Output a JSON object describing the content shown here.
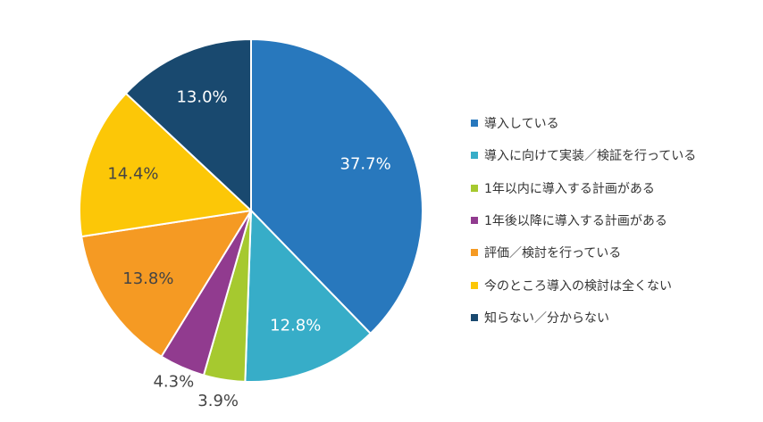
{
  "chart_data": {
    "type": "pie",
    "title": "",
    "legend_position": "right",
    "slices": [
      {
        "label": "導入している",
        "value": 37.7,
        "value_label": "37.7%",
        "color": "#2878bd",
        "label_color": "#ffffff",
        "label_placement": "inside"
      },
      {
        "label": "導入に向けて実装／検証を行っている",
        "value": 12.8,
        "value_label": "12.8%",
        "color": "#37adc8",
        "label_color": "#ffffff",
        "label_placement": "inside"
      },
      {
        "label": "1年以内に導入する計画がある",
        "value": 3.9,
        "value_label": "3.9%",
        "color": "#a6c92f",
        "label_color": "#444444",
        "label_placement": "outside"
      },
      {
        "label": "1年後以降に導入する計画がある",
        "value": 4.3,
        "value_label": "4.3%",
        "color": "#913b8f",
        "label_color": "#444444",
        "label_placement": "outside"
      },
      {
        "label": "評価／検討を行っている",
        "value": 13.8,
        "value_label": "13.8%",
        "color": "#f59a23",
        "label_color": "#444444",
        "label_placement": "inside"
      },
      {
        "label": "今のところ導入の検討は全くない",
        "value": 14.4,
        "value_label": "14.4%",
        "color": "#fcc707",
        "label_color": "#444444",
        "label_placement": "inside"
      },
      {
        "label": "知らない／分からない",
        "value": 13.0,
        "value_label": "13.0%",
        "color": "#19496f",
        "label_color": "#ffffff",
        "label_placement": "inside"
      }
    ]
  }
}
